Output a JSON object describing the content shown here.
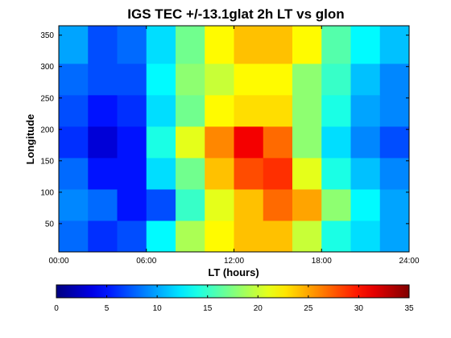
{
  "chart_data": {
    "type": "heatmap",
    "title": "IGS TEC +/-13.1glat 2h LT vs glon",
    "xlabel": "LT (hours)",
    "ylabel": "Longitude",
    "x_tick_labels": [
      "00:00",
      "06:00",
      "12:00",
      "18:00",
      "24:00"
    ],
    "x_tick_values": [
      0,
      6,
      12,
      18,
      24
    ],
    "y_tick_labels": [
      "50",
      "100",
      "150",
      "200",
      "250",
      "300",
      "350"
    ],
    "y_tick_values": [
      50,
      100,
      150,
      200,
      250,
      300,
      350
    ],
    "xlim": [
      0,
      24
    ],
    "ylim": [
      5,
      365
    ],
    "x_bin_edges": [
      0,
      2,
      4,
      6,
      8,
      10,
      12,
      14,
      16,
      18,
      20,
      22,
      24
    ],
    "y_bin_edges": [
      5,
      55,
      105,
      155,
      205,
      255,
      305,
      365
    ],
    "rows_bottom_to_top": [
      [
        8,
        6,
        7,
        13,
        19,
        22,
        24,
        24,
        20,
        14,
        12,
        10
      ],
      [
        9,
        8,
        5,
        7,
        15,
        21,
        24,
        27,
        25,
        18,
        13,
        10
      ],
      [
        8,
        5,
        5,
        12,
        17,
        24,
        28,
        29,
        21,
        14,
        11,
        9
      ],
      [
        6,
        3,
        5,
        14,
        21,
        26,
        31,
        27,
        18,
        12,
        9,
        7
      ],
      [
        7,
        5,
        6,
        12,
        17,
        22,
        23,
        23,
        18,
        14,
        10,
        9
      ],
      [
        8,
        7,
        7,
        13,
        18,
        20,
        22,
        22,
        18,
        15,
        11,
        9
      ],
      [
        10,
        7,
        8,
        12,
        17,
        22,
        24,
        24,
        22,
        16,
        13,
        11
      ]
    ],
    "colorbar": {
      "range": [
        0,
        35
      ],
      "tick_labels": [
        "0",
        "5",
        "10",
        "15",
        "20",
        "25",
        "30",
        "35"
      ],
      "tick_values": [
        0,
        5,
        10,
        15,
        20,
        25,
        30,
        35
      ],
      "colormap": "jet"
    },
    "grid": false
  }
}
